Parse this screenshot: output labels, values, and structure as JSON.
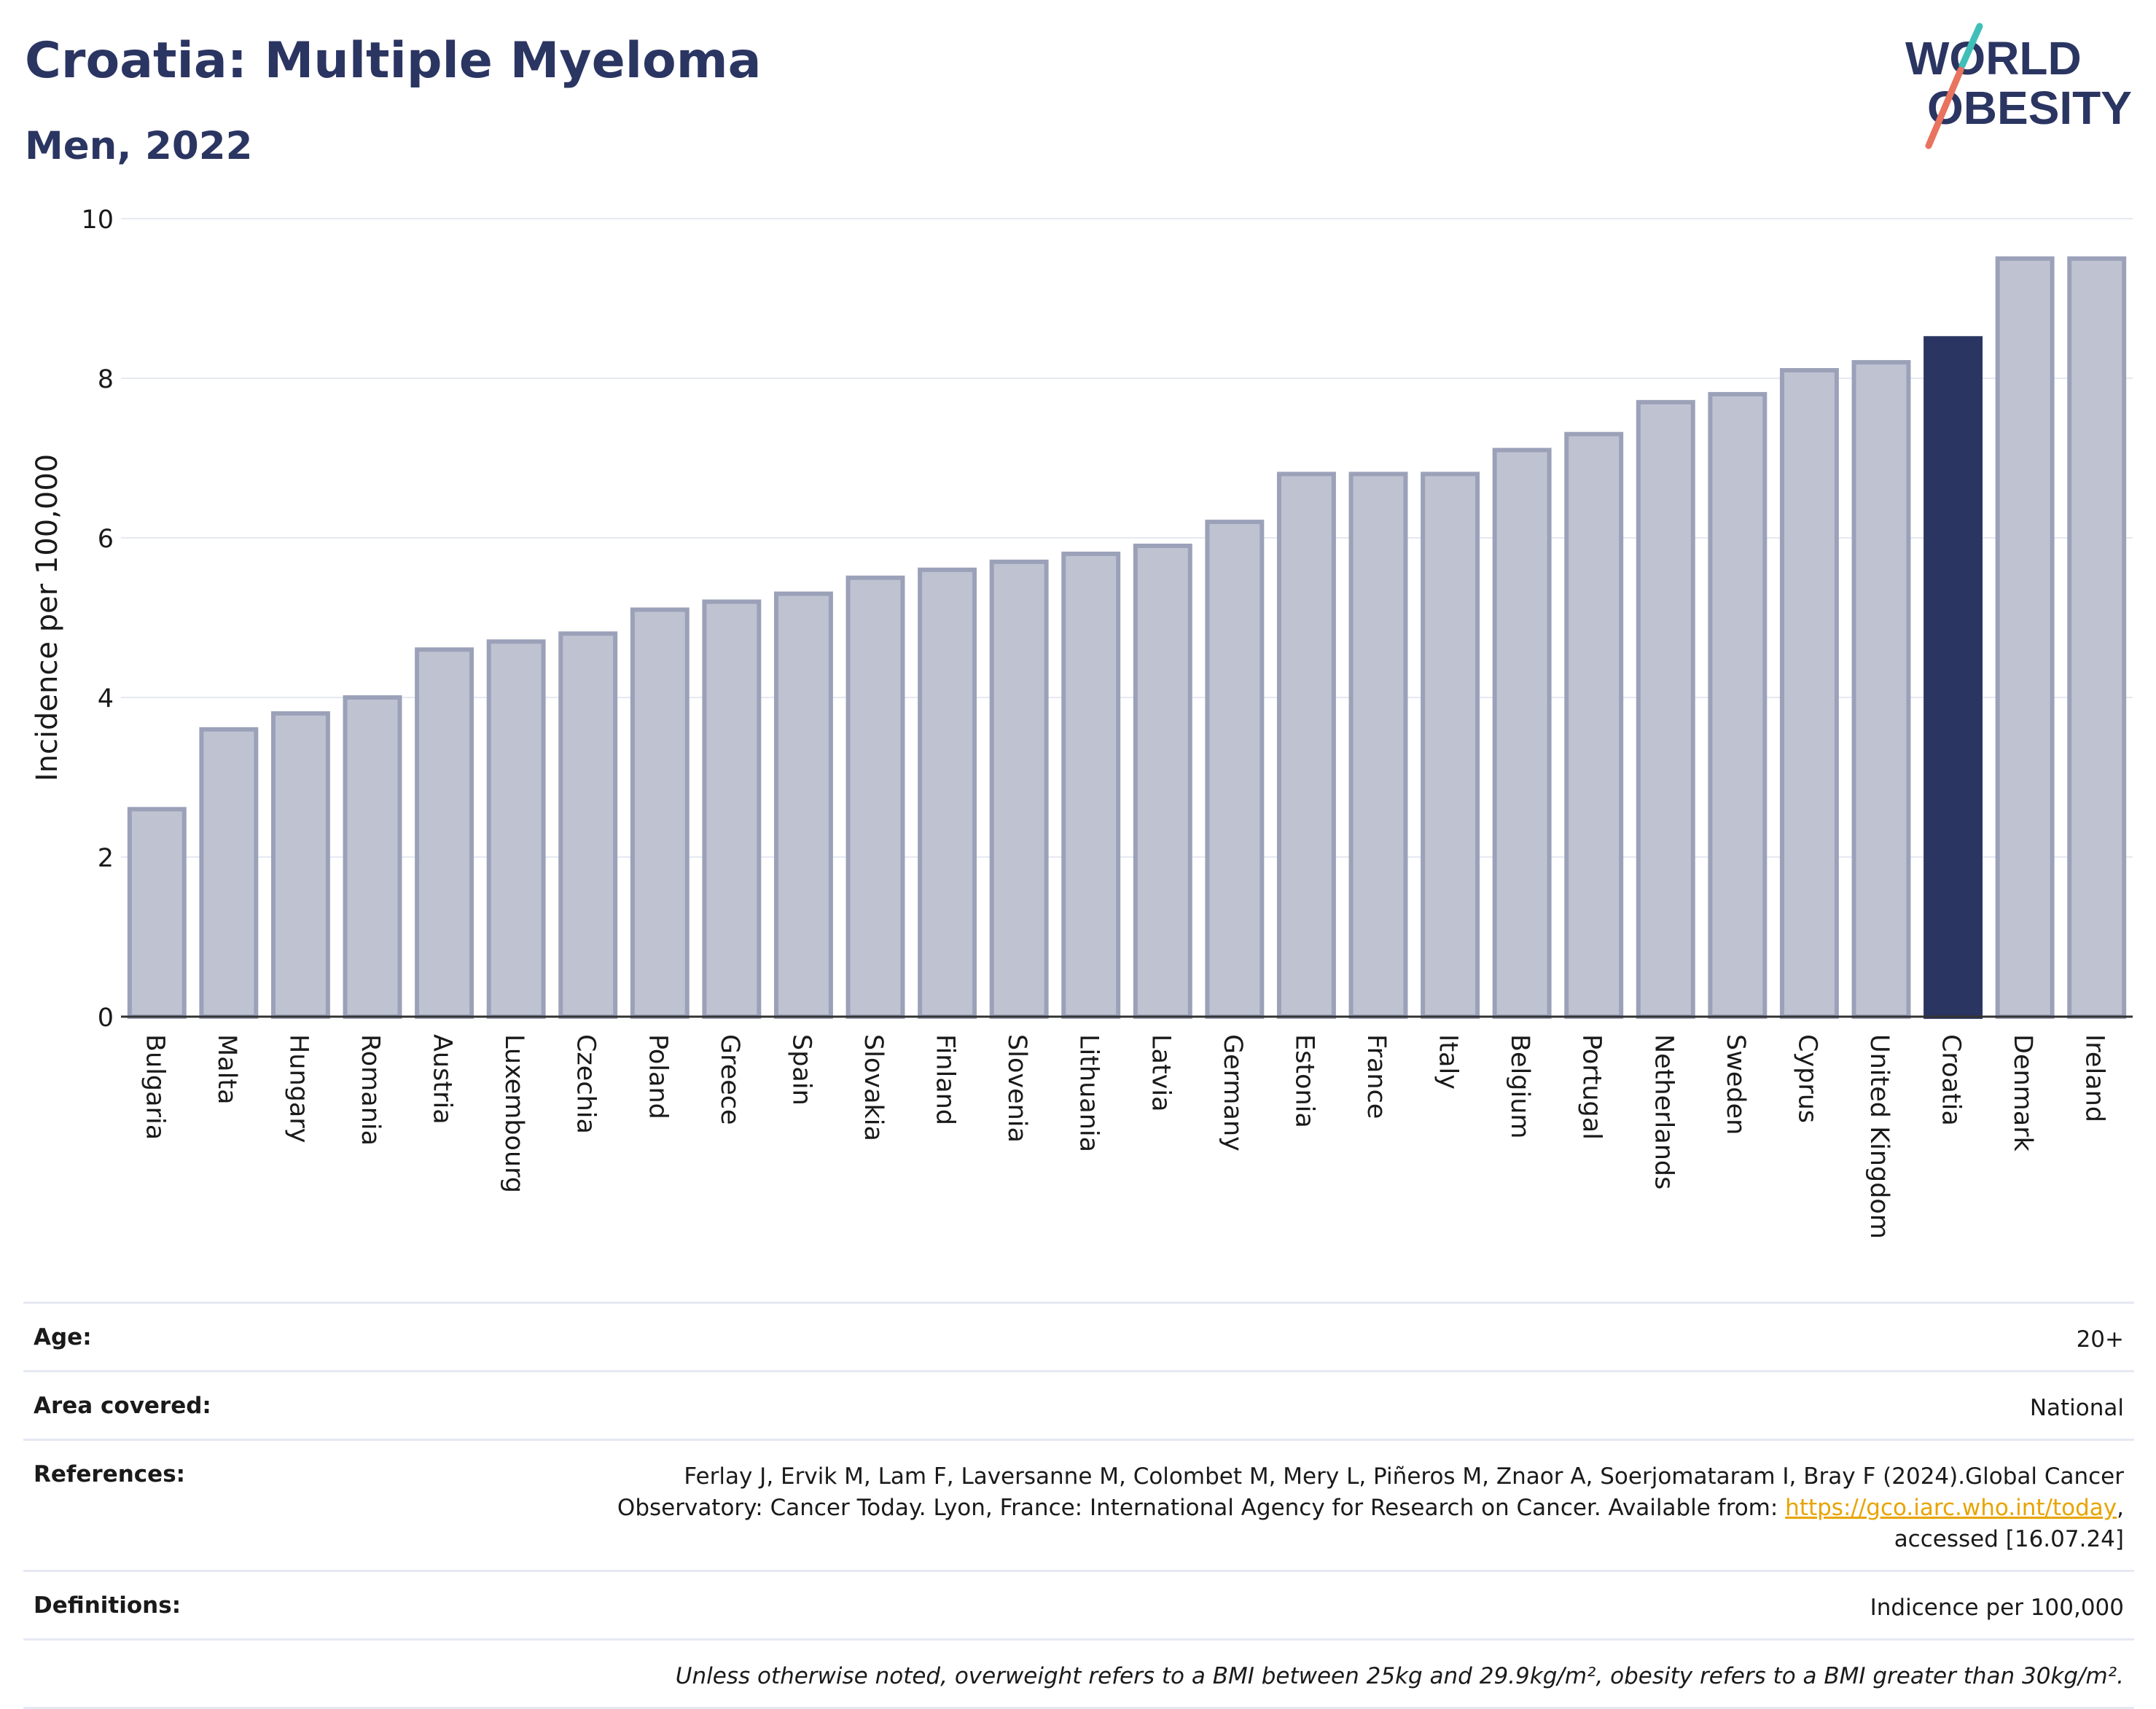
{
  "header": {
    "title": "Croatia: Multiple Myeloma",
    "subtitle": "Men, 2022"
  },
  "logo": {
    "line1": "WORLD",
    "line2": "OBESITY"
  },
  "colors": {
    "bar": "#bfc3d1",
    "bar_edge": "#9ba1b8",
    "highlight": "#2b3562",
    "grid": "#e6e9f2",
    "axis": "#333333"
  },
  "chart_data": {
    "type": "bar",
    "title": "Croatia: Multiple Myeloma",
    "subtitle": "Men, 2022",
    "xlabel": "",
    "ylabel": "Incidence per 100,000",
    "ylim": [
      0,
      10
    ],
    "yticks": [
      0,
      2,
      4,
      6,
      8,
      10
    ],
    "grid": true,
    "highlight": "Croatia",
    "categories": [
      "Bulgaria",
      "Malta",
      "Hungary",
      "Romania",
      "Austria",
      "Luxembourg",
      "Czechia",
      "Poland",
      "Greece",
      "Spain",
      "Slovakia",
      "Finland",
      "Slovenia",
      "Lithuania",
      "Latvia",
      "Germany",
      "Estonia",
      "France",
      "Italy",
      "Belgium",
      "Portugal",
      "Netherlands",
      "Sweden",
      "Cyprus",
      "United Kingdom",
      "Croatia",
      "Denmark",
      "Ireland"
    ],
    "values": [
      2.6,
      3.6,
      3.8,
      4.0,
      4.6,
      4.7,
      4.8,
      5.1,
      5.2,
      5.3,
      5.5,
      5.6,
      5.7,
      5.8,
      5.9,
      6.2,
      6.8,
      6.8,
      6.8,
      7.1,
      7.3,
      7.7,
      7.8,
      8.1,
      8.2,
      8.5,
      9.5,
      9.5
    ]
  },
  "meta": {
    "age_label": "Age:",
    "age_value": "20+",
    "area_label": "Area covered:",
    "area_value": "National",
    "references_label": "References:",
    "references_line1": "Ferlay J, Ervik M, Lam F, Laversanne M, Colombet M, Mery L, Piñeros M, Znaor A, Soerjomataram I, Bray F (2024).Global Cancer",
    "references_line2_prefix": "Observatory: Cancer Today. Lyon, France: International Agency for Research on Cancer. Available from: ",
    "references_link": "https://gco.iarc.who.int/today",
    "references_line2_suffix": ",",
    "references_line3": "accessed [16.07.24]",
    "definitions_label": "Definitions:",
    "definitions_value": "Indicence per 100,000",
    "note": "Unless otherwise noted, overweight refers to a BMI between 25kg and 29.9kg/m², obesity refers to a BMI greater than 30kg/m²."
  }
}
